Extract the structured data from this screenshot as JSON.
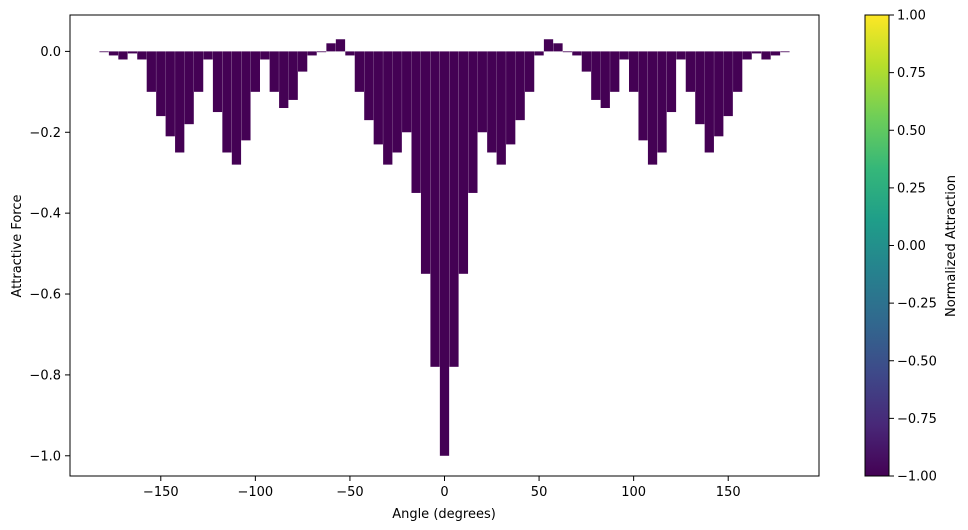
{
  "chart_data": {
    "type": "bar",
    "xlabel": "Angle (degrees)",
    "ylabel": "Attractive Force",
    "xlim": [
      -198,
      198
    ],
    "ylim": [
      -1.05,
      0.09
    ],
    "xticks": [
      -150,
      -100,
      -50,
      0,
      50,
      100,
      150
    ],
    "xtick_labels": [
      "−150",
      "−100",
      "−50",
      "0",
      "50",
      "100",
      "150"
    ],
    "yticks": [
      0.0,
      -0.2,
      -0.4,
      -0.6,
      -0.8,
      -1.0
    ],
    "ytick_labels": [
      "0.0",
      "−0.2",
      "−0.4",
      "−0.6",
      "−0.8",
      "−1.0"
    ],
    "bar_color": "#440154",
    "grid": false,
    "x": [
      -180,
      -175,
      -170,
      -165,
      -160,
      -155,
      -150,
      -145,
      -140,
      -135,
      -130,
      -125,
      -120,
      -115,
      -110,
      -105,
      -100,
      -95,
      -90,
      -85,
      -80,
      -75,
      -70,
      -65,
      -60,
      -55,
      -50,
      -45,
      -40,
      -35,
      -30,
      -25,
      -20,
      -15,
      -10,
      -5,
      0,
      5,
      10,
      15,
      20,
      25,
      30,
      35,
      40,
      45,
      50,
      55,
      60,
      65,
      70,
      75,
      80,
      85,
      90,
      95,
      100,
      105,
      110,
      115,
      120,
      125,
      130,
      135,
      140,
      145,
      150,
      155,
      160,
      165,
      170,
      175,
      180
    ],
    "values": [
      0.0,
      -0.01,
      -0.02,
      -0.005,
      -0.02,
      -0.1,
      -0.16,
      -0.21,
      -0.25,
      -0.18,
      -0.1,
      -0.02,
      -0.15,
      -0.25,
      -0.28,
      -0.22,
      -0.1,
      -0.02,
      -0.1,
      -0.14,
      -0.12,
      -0.05,
      -0.01,
      0.0,
      0.02,
      0.03,
      -0.01,
      -0.1,
      -0.17,
      -0.23,
      -0.28,
      -0.25,
      -0.2,
      -0.35,
      -0.55,
      -0.78,
      -1.0,
      -0.78,
      -0.55,
      -0.35,
      -0.2,
      -0.25,
      -0.28,
      -0.23,
      -0.17,
      -0.1,
      -0.01,
      0.03,
      0.02,
      0.0,
      -0.01,
      -0.05,
      -0.12,
      -0.14,
      -0.1,
      -0.02,
      -0.1,
      -0.22,
      -0.28,
      -0.25,
      -0.15,
      -0.02,
      -0.1,
      -0.18,
      -0.25,
      -0.21,
      -0.16,
      -0.1,
      -0.02,
      -0.005,
      -0.02,
      -0.01,
      0.0
    ]
  },
  "colorbar": {
    "label": "Normalized Attraction",
    "range": [
      -1.0,
      1.0
    ],
    "ticks": [
      1.0,
      0.75,
      0.5,
      0.25,
      0.0,
      -0.25,
      -0.5,
      -0.75,
      -1.0
    ],
    "tick_labels": [
      "1.00",
      "0.75",
      "0.50",
      "0.25",
      "0.00",
      "−0.25",
      "−0.50",
      "−0.75",
      "−1.00"
    ],
    "colormap_stops": [
      "#440154",
      "#482878",
      "#3e4989",
      "#31688e",
      "#26828e",
      "#1f9e89",
      "#35b779",
      "#6ece58",
      "#b5de2b",
      "#fde725"
    ]
  }
}
